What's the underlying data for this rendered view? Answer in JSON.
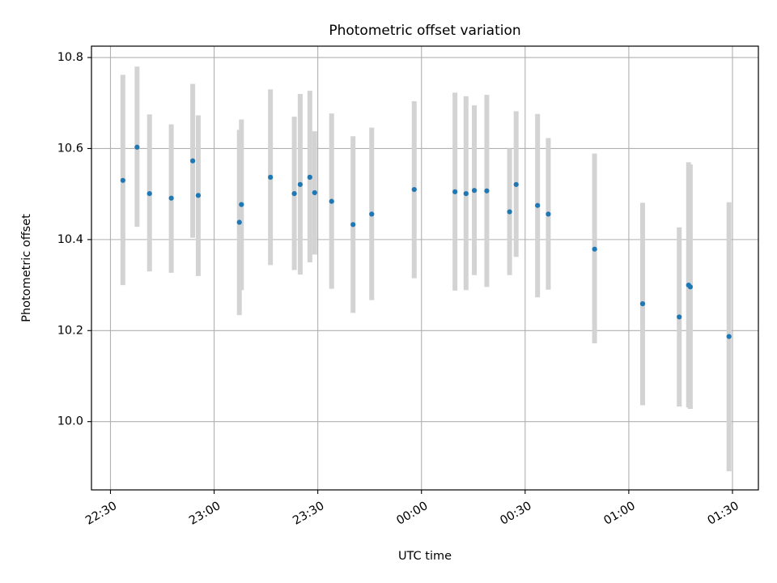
{
  "chart_data": {
    "type": "scatter",
    "title": "Photometric offset variation",
    "xlabel": "UTC time",
    "ylabel": "Photometric offset",
    "x_tick_labels": [
      "22:30",
      "23:00",
      "23:30",
      "00:00",
      "00:30",
      "01:00",
      "01:30"
    ],
    "x_tick_minutes": [
      0,
      30,
      60,
      90,
      120,
      150,
      180
    ],
    "xlim_minutes": [
      -5.5,
      187.5
    ],
    "y_tick_labels": [
      "10.0",
      "10.2",
      "10.4",
      "10.6",
      "10.8"
    ],
    "y_ticks": [
      10.0,
      10.2,
      10.4,
      10.6,
      10.8
    ],
    "ylim": [
      9.85,
      10.825
    ],
    "grid": true,
    "point_color": "#1f77b4",
    "errorbar_color": "#d3d3d3",
    "series": [
      {
        "name": "",
        "points": [
          {
            "t": 3.6,
            "y": 10.53,
            "lo": 10.3,
            "hi": 10.762
          },
          {
            "t": 7.7,
            "y": 10.603,
            "lo": 10.428,
            "hi": 10.78
          },
          {
            "t": 11.3,
            "y": 10.501,
            "lo": 10.33,
            "hi": 10.675
          },
          {
            "t": 17.6,
            "y": 10.491,
            "lo": 10.327,
            "hi": 10.653
          },
          {
            "t": 23.8,
            "y": 10.573,
            "lo": 10.404,
            "hi": 10.742
          },
          {
            "t": 25.4,
            "y": 10.497,
            "lo": 10.32,
            "hi": 10.673
          },
          {
            "t": 37.3,
            "y": 10.438,
            "lo": 10.234,
            "hi": 10.641
          },
          {
            "t": 37.9,
            "y": 10.477,
            "lo": 10.289,
            "hi": 10.664
          },
          {
            "t": 46.3,
            "y": 10.537,
            "lo": 10.344,
            "hi": 10.73
          },
          {
            "t": 53.2,
            "y": 10.501,
            "lo": 10.333,
            "hi": 10.67
          },
          {
            "t": 54.9,
            "y": 10.521,
            "lo": 10.323,
            "hi": 10.72
          },
          {
            "t": 57.7,
            "y": 10.537,
            "lo": 10.35,
            "hi": 10.727
          },
          {
            "t": 59.1,
            "y": 10.503,
            "lo": 10.367,
            "hi": 10.638
          },
          {
            "t": 64.0,
            "y": 10.484,
            "lo": 10.292,
            "hi": 10.677
          },
          {
            "t": 70.2,
            "y": 10.433,
            "lo": 10.239,
            "hi": 10.627
          },
          {
            "t": 75.6,
            "y": 10.456,
            "lo": 10.267,
            "hi": 10.646
          },
          {
            "t": 87.9,
            "y": 10.51,
            "lo": 10.315,
            "hi": 10.704
          },
          {
            "t": 99.7,
            "y": 10.505,
            "lo": 10.288,
            "hi": 10.723
          },
          {
            "t": 102.9,
            "y": 10.501,
            "lo": 10.289,
            "hi": 10.715
          },
          {
            "t": 105.3,
            "y": 10.508,
            "lo": 10.322,
            "hi": 10.695
          },
          {
            "t": 108.9,
            "y": 10.507,
            "lo": 10.296,
            "hi": 10.718
          },
          {
            "t": 115.5,
            "y": 10.461,
            "lo": 10.322,
            "hi": 10.6
          },
          {
            "t": 117.4,
            "y": 10.521,
            "lo": 10.362,
            "hi": 10.682
          },
          {
            "t": 123.6,
            "y": 10.475,
            "lo": 10.273,
            "hi": 10.676
          },
          {
            "t": 126.7,
            "y": 10.456,
            "lo": 10.29,
            "hi": 10.623
          },
          {
            "t": 140.1,
            "y": 10.379,
            "lo": 10.172,
            "hi": 10.589
          },
          {
            "t": 154.0,
            "y": 10.259,
            "lo": 10.036,
            "hi": 10.481
          },
          {
            "t": 164.6,
            "y": 10.23,
            "lo": 10.033,
            "hi": 10.427
          },
          {
            "t": 167.3,
            "y": 10.3,
            "lo": 10.031,
            "hi": 10.57
          },
          {
            "t": 167.8,
            "y": 10.296,
            "lo": 10.028,
            "hi": 10.565
          },
          {
            "t": 179.0,
            "y": 10.187,
            "lo": 9.891,
            "hi": 10.482
          }
        ]
      }
    ]
  }
}
